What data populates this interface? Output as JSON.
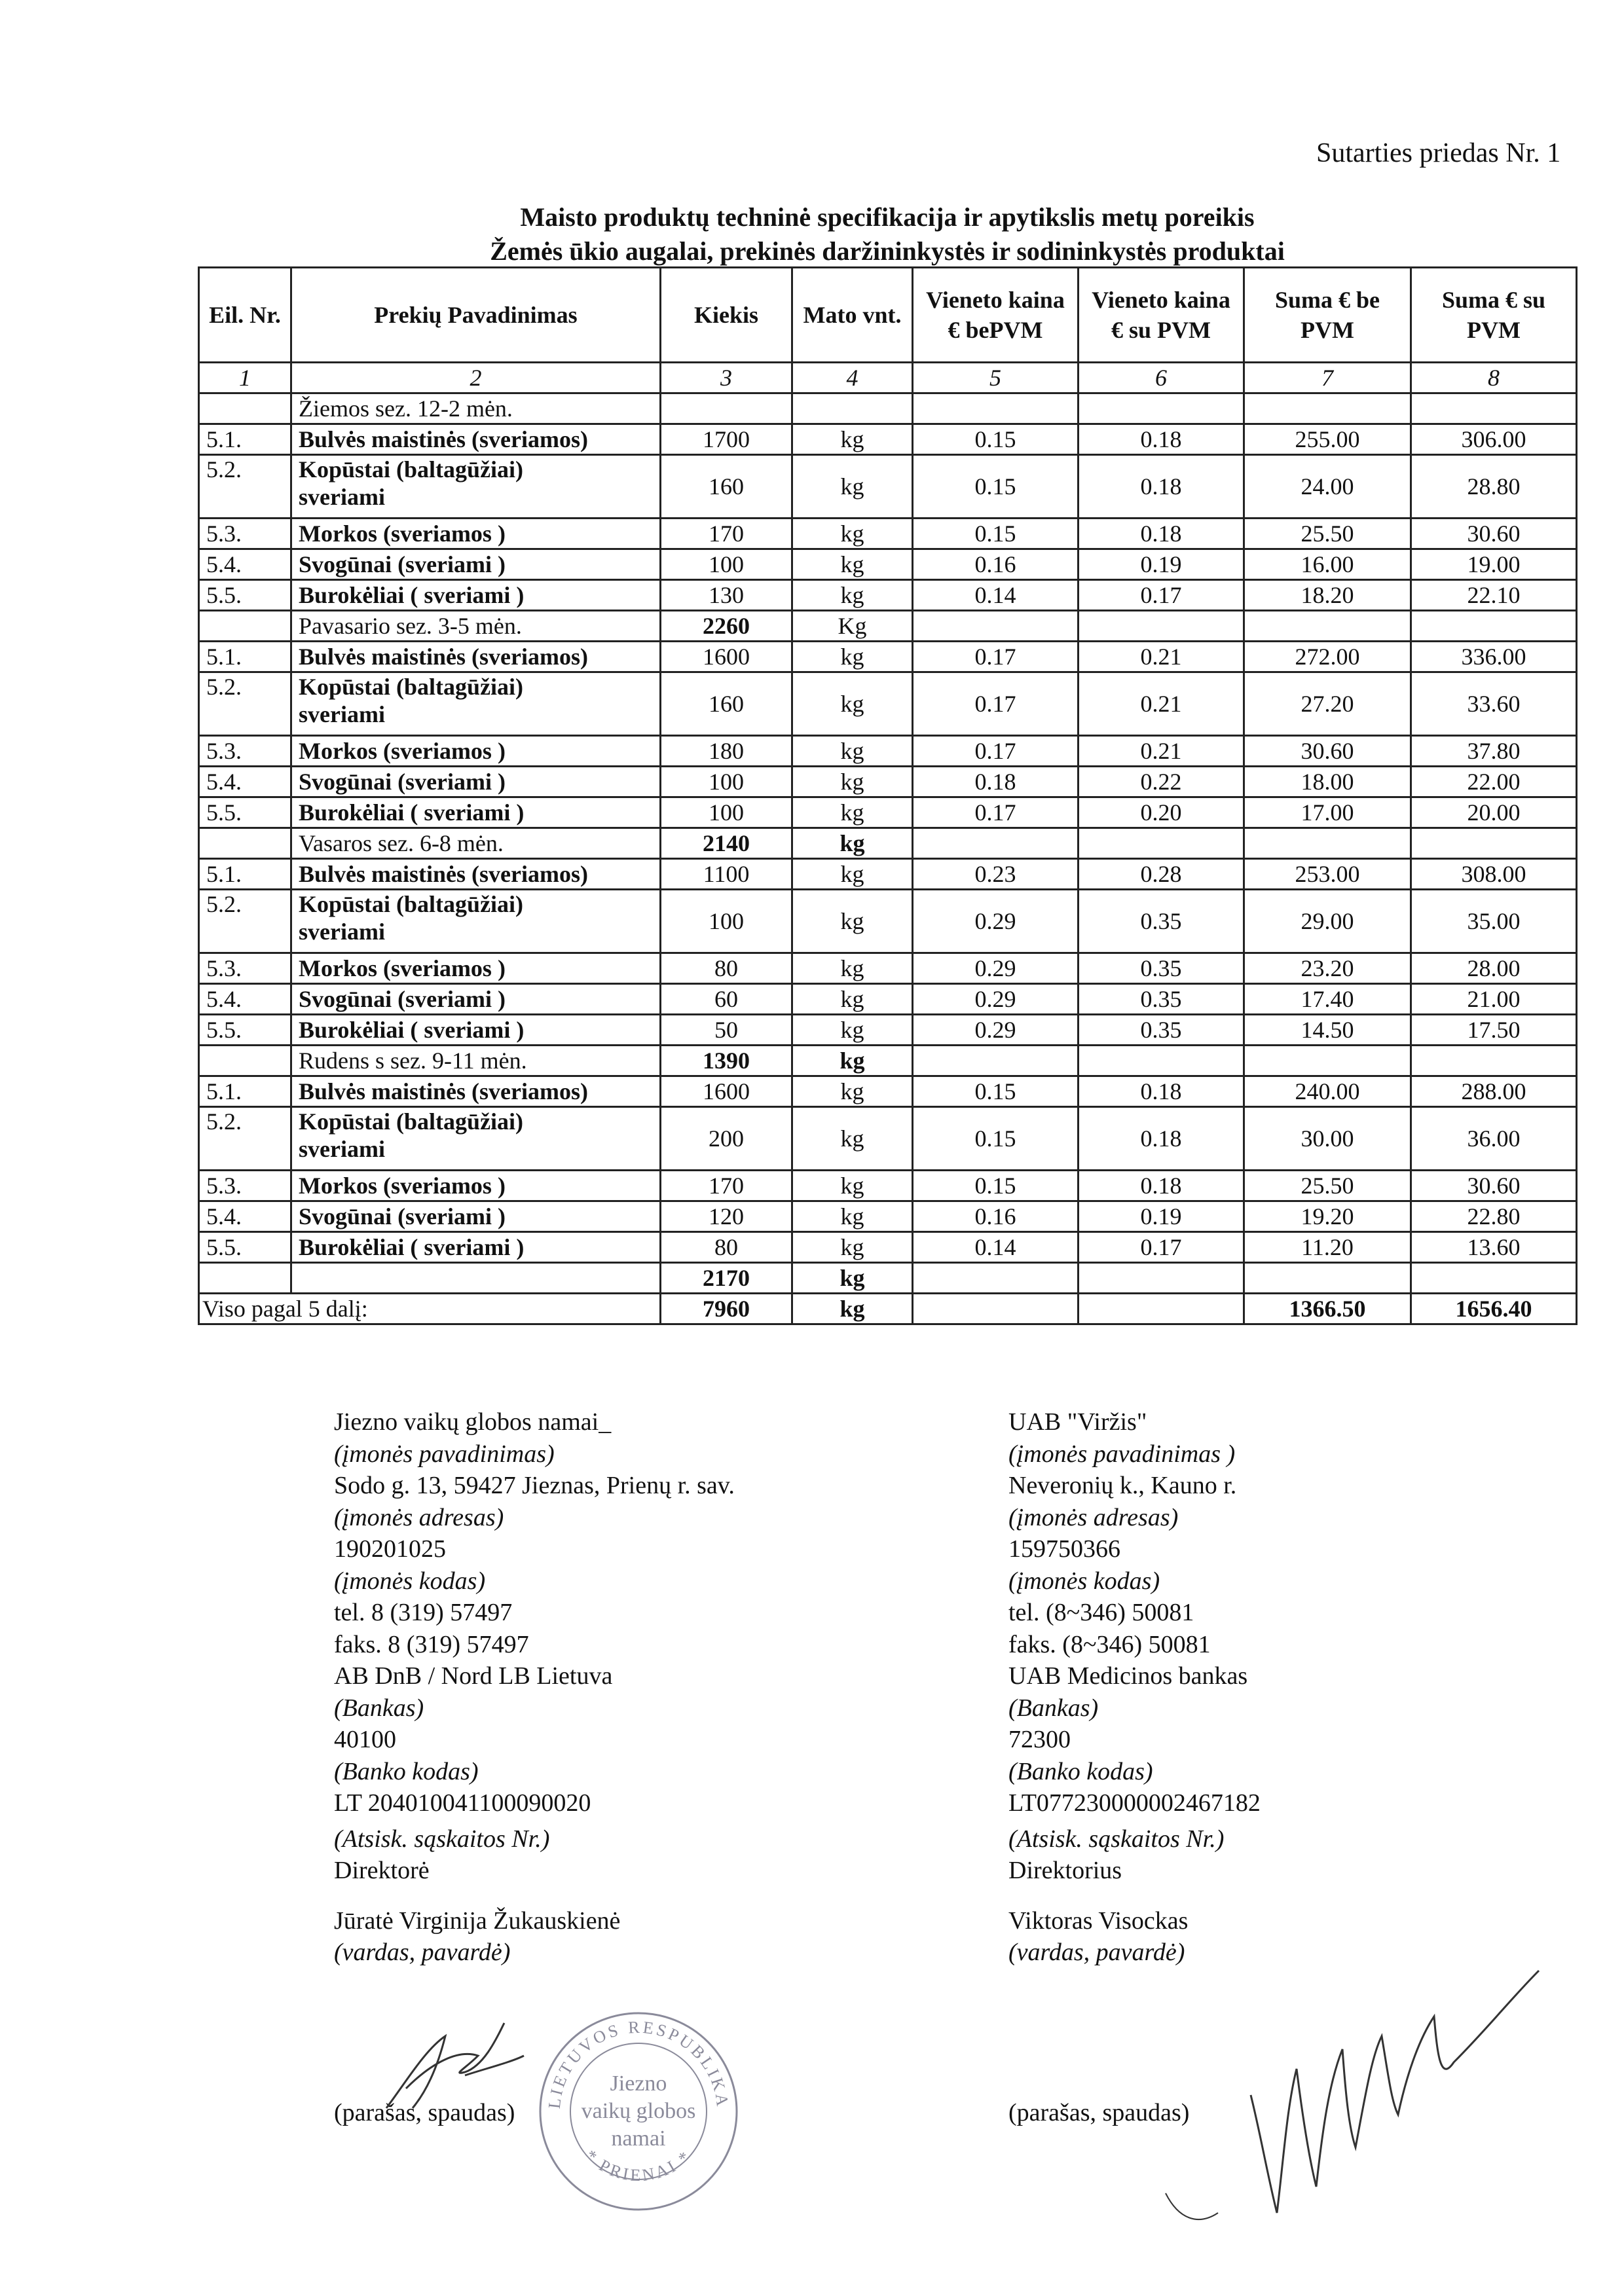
{
  "annex_label": "Sutarties priedas Nr. 1",
  "title": {
    "line1": "Maisto produktų  techninė specifikacija ir  apytikslis metų poreikis",
    "line2": "Žemės ūkio augalai, prekinės daržininkystės ir sodininkystės produktai"
  },
  "table": {
    "headers": [
      "Eil. Nr.",
      "Prekių Pavadinimas",
      "Kiekis",
      "Mato vnt.",
      "Vieneto kaina € bePVM",
      "Vieneto kaina € su PVM",
      "Suma € be PVM",
      "Suma € su PVM"
    ],
    "column_numbers": [
      "1",
      "2",
      "3",
      "4",
      "5",
      "6",
      "7",
      "8"
    ],
    "sections": [
      {
        "label": "Žiemos sez. 12-2 mėn.",
        "qty": "",
        "unit": "",
        "unit_bold": false,
        "items": [
          {
            "nr": "5.1.",
            "name": "Bulvės maistinės (sveriamos)",
            "qty": "1700",
            "unit": "kg",
            "price": "0.15",
            "price_vat": "0.18",
            "sum": "255.00",
            "sum_vat": "306.00"
          },
          {
            "nr": "5.2.",
            "name": "Kopūstai (baltagūžiai)\nsveriami",
            "qty": "160",
            "unit": "kg",
            "price": "0.15",
            "price_vat": "0.18",
            "sum": "24.00",
            "sum_vat": "28.80"
          },
          {
            "nr": "5.3.",
            "name": "Morkos  (sveriamos )",
            "qty": "170",
            "unit": "kg",
            "price": "0.15",
            "price_vat": "0.18",
            "sum": "25.50",
            "sum_vat": "30.60"
          },
          {
            "nr": "5.4.",
            "name": "Svogūnai (sveriami )",
            "qty": "100",
            "unit": "kg",
            "price": "0.16",
            "price_vat": "0.19",
            "sum": "16.00",
            "sum_vat": "19.00"
          },
          {
            "nr": "5.5.",
            "name": "Burokėliai ( sveriami )",
            "qty": "130",
            "unit": "kg",
            "price": "0.14",
            "price_vat": "0.17",
            "sum": "18.20",
            "sum_vat": "22.10"
          }
        ]
      },
      {
        "label": "Pavasario sez. 3-5  mėn.",
        "qty": "2260",
        "unit": "Kg",
        "unit_bold": false,
        "items": [
          {
            "nr": "5.1.",
            "name": "Bulvės maistinės (sveriamos)",
            "qty": "1600",
            "unit": "kg",
            "price": "0.17",
            "price_vat": "0.21",
            "sum": "272.00",
            "sum_vat": "336.00"
          },
          {
            "nr": "5.2.",
            "name": "Kopūstai (baltagūžiai)\nsveriami",
            "qty": "160",
            "unit": "kg",
            "price": "0.17",
            "price_vat": "0.21",
            "sum": "27.20",
            "sum_vat": "33.60"
          },
          {
            "nr": "5.3.",
            "name": "Morkos  (sveriamos )",
            "qty": "180",
            "unit": "kg",
            "price": "0.17",
            "price_vat": "0.21",
            "sum": "30.60",
            "sum_vat": "37.80"
          },
          {
            "nr": "5.4.",
            "name": "Svogūnai  (sveriami )",
            "qty": "100",
            "unit": "kg",
            "price": "0.18",
            "price_vat": "0.22",
            "sum": "18.00",
            "sum_vat": "22.00"
          },
          {
            "nr": "5.5.",
            "name": "Burokėliai ( sveriami )",
            "qty": "100",
            "unit": "kg",
            "price": "0.17",
            "price_vat": "0.20",
            "sum": "17.00",
            "sum_vat": "20.00"
          }
        ]
      },
      {
        "label": "Vasaros sez. 6-8  mėn.",
        "qty": "2140",
        "unit": "kg",
        "unit_bold": true,
        "items": [
          {
            "nr": "5.1.",
            "name": "Bulvės maistinės (sveriamos)",
            "qty": "1100",
            "unit": "kg",
            "price": "0.23",
            "price_vat": "0.28",
            "sum": "253.00",
            "sum_vat": "308.00"
          },
          {
            "nr": "5.2.",
            "name": "Kopūstai (baltagūžiai)\nsveriami",
            "qty": "100",
            "unit": "kg",
            "price": "0.29",
            "price_vat": "0.35",
            "sum": "29.00",
            "sum_vat": "35.00"
          },
          {
            "nr": "5.3.",
            "name": "Morkos  (sveriamos )",
            "qty": "80",
            "unit": "kg",
            "price": "0.29",
            "price_vat": "0.35",
            "sum": "23.20",
            "sum_vat": "28.00"
          },
          {
            "nr": "5.4.",
            "name": "Svogūnai  (sveriami )",
            "qty": "60",
            "unit": "kg",
            "price": "0.29",
            "price_vat": "0.35",
            "sum": "17.40",
            "sum_vat": "21.00"
          },
          {
            "nr": "5.5.",
            "name": "Burokėliai ( sveriami )",
            "qty": "50",
            "unit": "kg",
            "price": "0.29",
            "price_vat": "0.35",
            "sum": "14.50",
            "sum_vat": "17.50"
          }
        ]
      },
      {
        "label": "Rudens s sez. 9-11  mėn.",
        "qty": "1390",
        "unit": "kg",
        "unit_bold": true,
        "items": [
          {
            "nr": "5.1.",
            "name": "Bulvės maistinės (sveriamos)",
            "qty": "1600",
            "unit": "kg",
            "price": "0.15",
            "price_vat": "0.18",
            "sum": "240.00",
            "sum_vat": "288.00"
          },
          {
            "nr": "5.2.",
            "name": "Kopūstai (baltagūžiai)\nsveriami",
            "qty": "200",
            "unit": "kg",
            "price": "0.15",
            "price_vat": "0.18",
            "sum": "30.00",
            "sum_vat": "36.00"
          },
          {
            "nr": "5.3.",
            "name": "Morkos  (sveriamos )",
            "qty": "170",
            "unit": "kg",
            "price": "0.15",
            "price_vat": "0.18",
            "sum": "25.50",
            "sum_vat": "30.60"
          },
          {
            "nr": "5.4.",
            "name": "Svogūnai (sveriami )",
            "qty": "120",
            "unit": "kg",
            "price": "0.16",
            "price_vat": "0.19",
            "sum": "19.20",
            "sum_vat": "22.80"
          },
          {
            "nr": "5.5.",
            "name": "Burokėliai ( sveriami )",
            "qty": "80",
            "unit": "kg",
            "price": "0.14",
            "price_vat": "0.17",
            "sum": "11.20",
            "sum_vat": "13.60"
          }
        ]
      }
    ],
    "subtotal": {
      "qty": "2170",
      "unit": "kg"
    },
    "total": {
      "label": "Viso pagal  5 dalį:",
      "qty": "7960",
      "unit": "kg",
      "sum": "1366.50",
      "sum_vat": "1656.40"
    }
  },
  "buyer": {
    "name": "Jiezno vaikų globos namai_",
    "name_caption": "(įmonės pavadinimas)",
    "address": "Sodo g. 13, 59427 Jieznas, Prienų r. sav.",
    "address_caption": "(įmonės adresas)",
    "code": "190201025",
    "code_caption": "(įmonės kodas)",
    "tel": "tel.  8 (319) 57497",
    "fax": "faks.  8 (319) 57497",
    "bank": "AB DnB / Nord  LB Lietuva",
    "bank_caption": "(Bankas)",
    "bank_code": "40100",
    "bank_code_caption": "(Banko kodas)",
    "account": "LT 204010041100090020",
    "account_caption": "(Atsisk. sąskaitos Nr.)",
    "position": "Direktorė",
    "person": "Jūratė Virginija Žukauskienė",
    "person_caption": "(vardas, pavardė)",
    "signature_caption": "(parašas, spaudas)"
  },
  "supplier": {
    "name": "UAB \"Viržis\"",
    "name_caption": "(įmonės pavadinimas )",
    "address": "Neveronių k., Kauno r.",
    "address_caption": "(įmonės adresas)",
    "code": "159750366",
    "code_caption": "(įmonės kodas)",
    "tel": "tel. (8~346) 50081",
    "fax": "faks. (8~346) 50081",
    "bank": "UAB Medicinos bankas",
    "bank_caption": "(Bankas)",
    "bank_code": "72300",
    "bank_code_caption": "(Banko kodas)",
    "account": "LT077230000002467182",
    "account_caption": "(Atsisk. sąskaitos Nr.)",
    "position": "Direktorius",
    "person": "Viktoras Visockas",
    "person_caption": "(vardas, pavardė)",
    "signature_caption": "(parašas, spaudas)"
  },
  "stamp": {
    "ring_top": "LIETUVOS RESPUBLIKA",
    "center": [
      "Jiezno",
      "vaikų globos",
      "namai"
    ],
    "ring_bottom": "* PRIENAI *"
  }
}
